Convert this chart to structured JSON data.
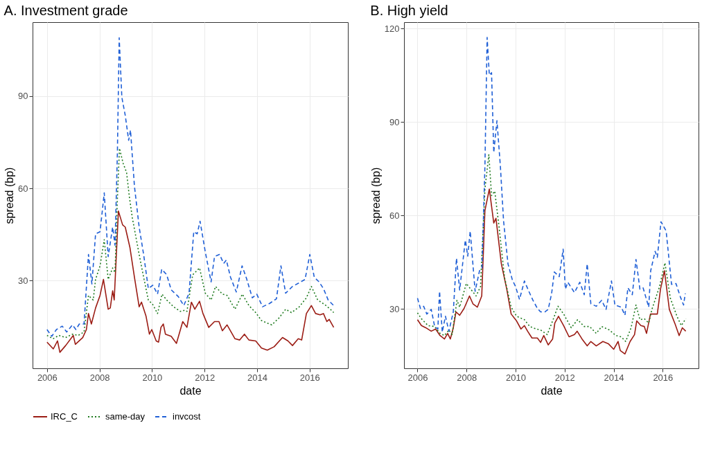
{
  "chart_data": [
    {
      "type": "line",
      "title": "A. Investment grade",
      "xlabel": "date",
      "ylabel": "spread (bp)",
      "xlim": [
        2005.45,
        2017.46
      ],
      "ylim": [
        1.5,
        114
      ],
      "xticks": [
        2006,
        2008,
        2010,
        2012,
        2014,
        2016
      ],
      "yticks": [
        30,
        60,
        90
      ],
      "grid": true,
      "legend": "bottom",
      "series": [
        {
          "name": "IRC_C",
          "color": "#9b1c14",
          "line_style": "solid",
          "x": [
            2006.0,
            2006.24,
            2006.4,
            2006.49,
            2006.71,
            2007.0,
            2007.08,
            2007.36,
            2007.5,
            2007.58,
            2007.69,
            2007.85,
            2008.02,
            2008.15,
            2008.33,
            2008.41,
            2008.5,
            2008.56,
            2008.72,
            2008.88,
            2008.98,
            2009.16,
            2009.33,
            2009.51,
            2009.6,
            2009.77,
            2009.9,
            2009.99,
            2010.16,
            2010.25,
            2010.34,
            2010.43,
            2010.51,
            2010.73,
            2010.93,
            2011.17,
            2011.33,
            2011.5,
            2011.63,
            2011.81,
            2011.94,
            2012.16,
            2012.38,
            2012.55,
            2012.68,
            2012.86,
            2013.16,
            2013.34,
            2013.52,
            2013.69,
            2013.95,
            2014.17,
            2014.39,
            2014.65,
            2014.97,
            2015.18,
            2015.35,
            2015.57,
            2015.7,
            2015.88,
            2016.07,
            2016.23,
            2016.4,
            2016.53,
            2016.66,
            2016.75,
            2016.92
          ],
          "values": [
            10.0,
            7.8,
            10.4,
            6.7,
            8.9,
            12.2,
            9.3,
            11.5,
            14.1,
            19.3,
            15.9,
            21.1,
            25.2,
            30.4,
            20.7,
            21.1,
            26.7,
            23.7,
            52.6,
            48.1,
            47.4,
            40.7,
            31.1,
            21.5,
            23.0,
            18.5,
            12.6,
            14.1,
            10.4,
            10.0,
            14.8,
            15.9,
            12.6,
            11.9,
            9.6,
            16.7,
            14.8,
            23.0,
            20.7,
            23.3,
            19.3,
            14.8,
            16.7,
            16.7,
            13.7,
            15.6,
            11.1,
            10.7,
            12.6,
            10.7,
            10.4,
            8.1,
            7.4,
            8.5,
            11.5,
            10.4,
            8.9,
            11.1,
            10.7,
            19.3,
            21.9,
            19.3,
            18.9,
            19.3,
            16.7,
            17.4,
            14.8
          ]
        },
        {
          "name": "same-day",
          "color": "#1e7a1e",
          "line_style": "dotted",
          "x": [
            2006.0,
            2006.23,
            2006.45,
            2006.71,
            2006.97,
            2007.19,
            2007.41,
            2007.58,
            2007.76,
            2007.85,
            2008.02,
            2008.18,
            2008.33,
            2008.5,
            2008.59,
            2008.68,
            2008.76,
            2008.9,
            2009.03,
            2009.14,
            2009.25,
            2009.51,
            2009.68,
            2009.86,
            2010.03,
            2010.21,
            2010.38,
            2010.56,
            2010.82,
            2011.08,
            2011.26,
            2011.33,
            2011.55,
            2011.81,
            2012.03,
            2012.25,
            2012.42,
            2012.68,
            2012.86,
            2013.16,
            2013.44,
            2013.69,
            2013.95,
            2014.17,
            2014.56,
            2014.83,
            2015.09,
            2015.31,
            2015.61,
            2015.88,
            2016.07,
            2016.31,
            2016.58,
            2016.79,
            2016.92
          ],
          "values": [
            12.2,
            11.1,
            12.2,
            11.5,
            12.6,
            12.2,
            13.3,
            25.2,
            23.7,
            30.4,
            34.8,
            43.3,
            30.4,
            34.1,
            32.6,
            56.3,
            73.0,
            68.1,
            65.2,
            57.0,
            50.4,
            38.5,
            31.1,
            23.7,
            22.2,
            19.3,
            25.6,
            23.7,
            21.5,
            20.0,
            20.4,
            20.0,
            31.9,
            34.1,
            25.9,
            23.7,
            28.1,
            25.6,
            25.2,
            20.7,
            25.6,
            21.9,
            19.6,
            17.0,
            15.6,
            17.8,
            20.7,
            19.6,
            21.5,
            24.4,
            28.1,
            23.7,
            22.2,
            20.7,
            19.6
          ]
        },
        {
          "name": "invcost",
          "color": "#1f5fd6",
          "line_style": "dashed",
          "x": [
            2006.0,
            2006.18,
            2006.36,
            2006.58,
            2006.75,
            2006.97,
            2007.1,
            2007.23,
            2007.41,
            2007.58,
            2007.71,
            2007.85,
            2008.02,
            2008.18,
            2008.33,
            2008.5,
            2008.59,
            2008.68,
            2008.75,
            2008.85,
            2008.98,
            2009.11,
            2009.18,
            2009.33,
            2009.51,
            2009.68,
            2009.86,
            2010.03,
            2010.21,
            2010.37,
            2010.56,
            2010.73,
            2011.0,
            2011.21,
            2011.41,
            2011.59,
            2011.72,
            2011.83,
            2012.03,
            2012.25,
            2012.38,
            2012.57,
            2012.73,
            2012.83,
            2012.99,
            2013.21,
            2013.43,
            2013.6,
            2013.82,
            2013.99,
            2014.21,
            2014.48,
            2014.74,
            2014.91,
            2015.09,
            2015.35,
            2015.61,
            2015.83,
            2016.01,
            2016.18,
            2016.36,
            2016.53,
            2016.71,
            2016.92
          ],
          "values": [
            14.1,
            11.9,
            14.1,
            15.2,
            13.3,
            15.6,
            14.1,
            15.9,
            15.9,
            38.5,
            28.9,
            45.2,
            45.9,
            58.5,
            37.8,
            47.4,
            41.5,
            71.1,
            108.9,
            89.6,
            83.7,
            75.6,
            78.9,
            60.7,
            47.4,
            38.5,
            27.4,
            28.5,
            25.6,
            33.7,
            31.9,
            27.0,
            24.8,
            21.9,
            25.9,
            45.9,
            45.2,
            49.3,
            39.3,
            29.6,
            37.8,
            38.5,
            35.6,
            36.7,
            31.1,
            26.3,
            34.8,
            30.7,
            24.4,
            25.6,
            21.5,
            22.6,
            24.1,
            34.8,
            25.9,
            28.1,
            29.3,
            30.4,
            38.5,
            31.1,
            29.6,
            27.4,
            23.7,
            21.9
          ]
        }
      ]
    },
    {
      "type": "line",
      "title": "B. High yield",
      "xlabel": "date",
      "ylabel": "spread (bp)",
      "xlim": [
        2005.45,
        2017.46
      ],
      "ylim": [
        11,
        122
      ],
      "xticks": [
        2006,
        2008,
        2010,
        2012,
        2014,
        2016
      ],
      "yticks": [
        30,
        60,
        90,
        120
      ],
      "grid": true,
      "legend": "bottom",
      "series": [
        {
          "name": "IRC_C",
          "color": "#9b1c14",
          "line_style": "solid",
          "x": [
            2006.0,
            2006.16,
            2006.34,
            2006.56,
            2006.74,
            2006.92,
            2007.1,
            2007.23,
            2007.34,
            2007.46,
            2007.57,
            2007.72,
            2007.9,
            2008.12,
            2008.26,
            2008.44,
            2008.62,
            2008.75,
            2008.93,
            2009.11,
            2009.2,
            2009.42,
            2009.64,
            2009.82,
            2010.04,
            2010.22,
            2010.36,
            2010.49,
            2010.67,
            2010.89,
            2011.02,
            2011.15,
            2011.33,
            2011.51,
            2011.6,
            2011.75,
            2011.96,
            2012.18,
            2012.4,
            2012.51,
            2012.71,
            2012.92,
            2013.07,
            2013.29,
            2013.56,
            2013.78,
            2014.0,
            2014.18,
            2014.27,
            2014.46,
            2014.67,
            2014.85,
            2014.94,
            2015.11,
            2015.25,
            2015.34,
            2015.5,
            2015.78,
            2015.91,
            2016.07,
            2016.27,
            2016.51,
            2016.67,
            2016.8,
            2016.94
          ],
          "values": [
            26.6,
            24.7,
            24.0,
            22.9,
            23.6,
            21.5,
            20.4,
            22.2,
            20.4,
            24.0,
            29.1,
            28.0,
            30.2,
            34.2,
            31.7,
            30.6,
            34.2,
            61.6,
            68.5,
            57.6,
            59.1,
            44.5,
            36.4,
            28.4,
            26.2,
            23.6,
            24.7,
            22.9,
            20.7,
            20.7,
            19.3,
            21.5,
            18.5,
            20.4,
            25.5,
            27.7,
            24.7,
            21.1,
            21.8,
            22.9,
            20.4,
            18.2,
            19.6,
            18.2,
            19.6,
            18.9,
            17.1,
            19.6,
            16.7,
            15.6,
            19.6,
            21.8,
            26.2,
            24.7,
            24.4,
            22.2,
            28.4,
            28.4,
            36.4,
            42.3,
            29.9,
            25.1,
            21.5,
            24.0,
            22.9
          ]
        },
        {
          "name": "same-day",
          "color": "#1e7a1e",
          "line_style": "dotted",
          "x": [
            2006.0,
            2006.16,
            2006.43,
            2006.7,
            2006.92,
            2007.1,
            2007.28,
            2007.41,
            2007.61,
            2007.72,
            2007.99,
            2008.17,
            2008.39,
            2008.57,
            2008.75,
            2008.91,
            2009.02,
            2009.15,
            2009.33,
            2009.55,
            2009.82,
            2010.04,
            2010.36,
            2010.58,
            2010.85,
            2011.02,
            2011.29,
            2011.51,
            2011.73,
            2011.96,
            2012.27,
            2012.53,
            2012.8,
            2013.02,
            2013.29,
            2013.51,
            2013.82,
            2014.09,
            2014.31,
            2014.49,
            2014.71,
            2014.91,
            2015.07,
            2015.25,
            2015.43,
            2015.56,
            2015.87,
            2016.09,
            2016.31,
            2016.58,
            2016.76,
            2016.94
          ],
          "values": [
            28.8,
            26.9,
            24.7,
            24.4,
            22.2,
            21.5,
            23.3,
            21.8,
            32.8,
            30.6,
            38.2,
            36.4,
            34.2,
            37.2,
            68.5,
            79.5,
            66.4,
            67.8,
            56.1,
            40.1,
            30.6,
            27.7,
            26.6,
            24.4,
            23.6,
            23.3,
            21.8,
            26.2,
            30.9,
            28.4,
            24.0,
            26.6,
            24.4,
            24.4,
            22.2,
            24.4,
            23.3,
            21.5,
            21.1,
            19.6,
            24.0,
            31.3,
            26.6,
            26.9,
            25.5,
            29.9,
            37.2,
            44.8,
            33.5,
            27.7,
            24.7,
            26.9
          ]
        },
        {
          "name": "invcost",
          "color": "#1f5fd6",
          "line_style": "dashed",
          "x": [
            2006.0,
            2006.12,
            2006.25,
            2006.38,
            2006.56,
            2006.7,
            2006.83,
            2006.9,
            2007.01,
            2007.14,
            2007.28,
            2007.46,
            2007.59,
            2007.72,
            2007.95,
            2008.05,
            2008.15,
            2008.35,
            2008.53,
            2008.63,
            2008.75,
            2008.84,
            2008.93,
            2009.02,
            2009.11,
            2009.24,
            2009.38,
            2009.51,
            2009.69,
            2009.87,
            2010.0,
            2010.16,
            2010.36,
            2010.54,
            2010.71,
            2010.89,
            2011.02,
            2011.2,
            2011.33,
            2011.47,
            2011.58,
            2011.78,
            2011.94,
            2012.03,
            2012.13,
            2012.4,
            2012.62,
            2012.8,
            2012.92,
            2013.07,
            2013.29,
            2013.51,
            2013.69,
            2013.91,
            2014.05,
            2014.31,
            2014.46,
            2014.58,
            2014.76,
            2014.91,
            2015.07,
            2015.2,
            2015.43,
            2015.51,
            2015.69,
            2015.78,
            2015.93,
            2016.14,
            2016.36,
            2016.54,
            2016.72,
            2016.85,
            2016.92
          ],
          "values": [
            33.5,
            30.2,
            30.9,
            28.4,
            29.9,
            24.4,
            23.6,
            35.7,
            22.6,
            27.7,
            22.9,
            29.1,
            46.3,
            36.1,
            52.1,
            47.0,
            55.0,
            35.7,
            42.3,
            43.0,
            75.8,
            117.1,
            105.0,
            105.8,
            80.2,
            90.4,
            75.8,
            58.3,
            44.5,
            39.3,
            37.2,
            33.1,
            39.0,
            35.7,
            32.8,
            30.2,
            29.1,
            29.1,
            29.9,
            35.0,
            41.9,
            40.4,
            49.2,
            36.4,
            38.6,
            35.3,
            38.6,
            34.6,
            44.5,
            31.7,
            30.9,
            32.8,
            29.9,
            39.0,
            31.3,
            30.6,
            28.0,
            36.8,
            34.6,
            45.9,
            36.4,
            36.8,
            30.6,
            42.3,
            48.5,
            46.6,
            58.0,
            55.0,
            37.9,
            38.2,
            33.9,
            31.3,
            35.0
          ]
        }
      ]
    }
  ]
}
